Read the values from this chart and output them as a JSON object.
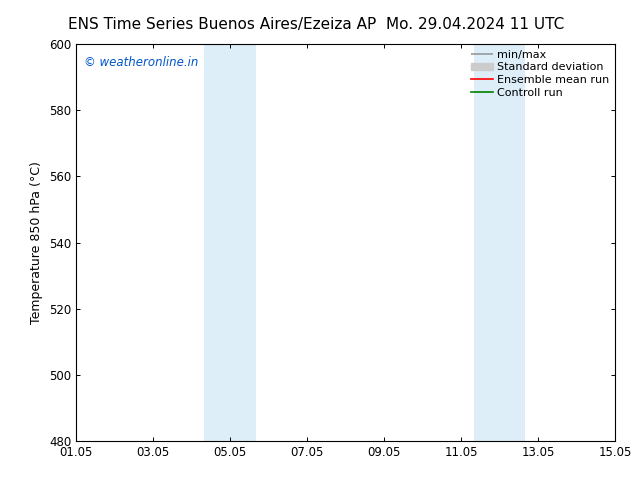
{
  "title": "ENS Time Series Buenos Aires/Ezeiza AP        Mo. 29.04.2024 11 UTC",
  "title_left": "ENS Time Series Buenos Aires/Ezeiza AP",
  "title_right": "Mo. 29.04.2024 11 UTC",
  "ylabel": "Temperature 850 hPa (°C)",
  "xlim": [
    0,
    14
  ],
  "xtick_positions": [
    0,
    2,
    4,
    6,
    8,
    10,
    12,
    14
  ],
  "xtick_labels": [
    "01.05",
    "03.05",
    "05.05",
    "07.05",
    "09.05",
    "11.05",
    "13.05",
    "15.05"
  ],
  "ylim": [
    480,
    600
  ],
  "ytick_positions": [
    480,
    500,
    520,
    540,
    560,
    580,
    600
  ],
  "ytick_labels": [
    "480",
    "500",
    "520",
    "540",
    "560",
    "580",
    "600"
  ],
  "shade_bands": [
    {
      "xstart": 3.33,
      "xend": 4.0,
      "color": "#ddeef8"
    },
    {
      "xstart": 4.0,
      "xend": 4.67,
      "color": "#ddeef8"
    },
    {
      "xstart": 10.33,
      "xend": 11.0,
      "color": "#ddeef8"
    },
    {
      "xstart": 11.0,
      "xend": 11.67,
      "color": "#ddeef8"
    }
  ],
  "watermark_text": "© weatheronline.in",
  "watermark_color": "#0055cc",
  "background_color": "#ffffff",
  "plot_bg_color": "#ffffff",
  "legend_entries": [
    {
      "label": "min/max",
      "color": "#999999",
      "lw": 1.2,
      "style": "minmax"
    },
    {
      "label": "Standard deviation",
      "color": "#cccccc",
      "lw": 7,
      "style": "band"
    },
    {
      "label": "Ensemble mean run",
      "color": "#ff0000",
      "lw": 1.2,
      "style": "line"
    },
    {
      "label": "Controll run",
      "color": "#008000",
      "lw": 1.2,
      "style": "line"
    }
  ],
  "title_fontsize": 11,
  "axis_label_fontsize": 9,
  "tick_fontsize": 8.5,
  "legend_fontsize": 8
}
